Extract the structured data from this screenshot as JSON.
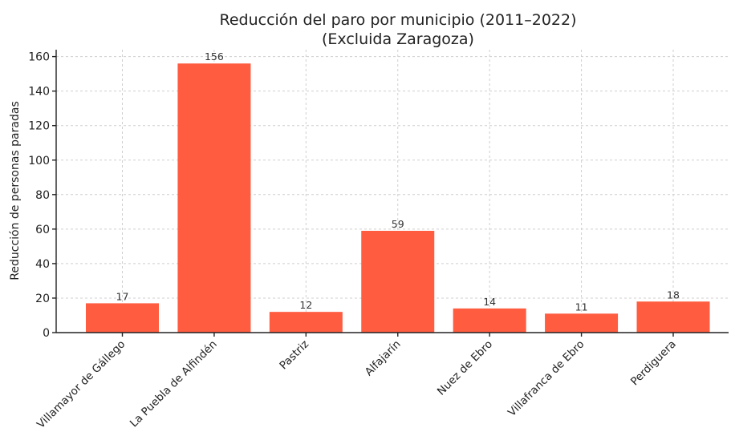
{
  "chart_data": {
    "type": "bar",
    "title": "Reducción del paro por municipio (2011–2022)",
    "subtitle": "(Excluida Zaragoza)",
    "xlabel": "",
    "ylabel": "Reducción de personas paradas",
    "categories": [
      "Villamayor de Gállego",
      "La Puebla de Alfindén",
      "Pastriz",
      "Alfajarín",
      "Nuez de Ebro",
      "Villafranca de Ebro",
      "Perdiguera"
    ],
    "values": [
      17,
      156,
      12,
      59,
      14,
      11,
      18
    ],
    "data_labels": [
      "17",
      "156",
      "12",
      "59",
      "14",
      "11",
      "18"
    ],
    "ylim": [
      0,
      164
    ],
    "yticks": [
      0,
      20,
      40,
      60,
      80,
      100,
      120,
      140,
      160
    ],
    "ytick_labels": [
      "0",
      "20",
      "40",
      "60",
      "80",
      "100",
      "120",
      "140",
      "160"
    ],
    "grid": true,
    "bar_color": "#FF5C40"
  }
}
